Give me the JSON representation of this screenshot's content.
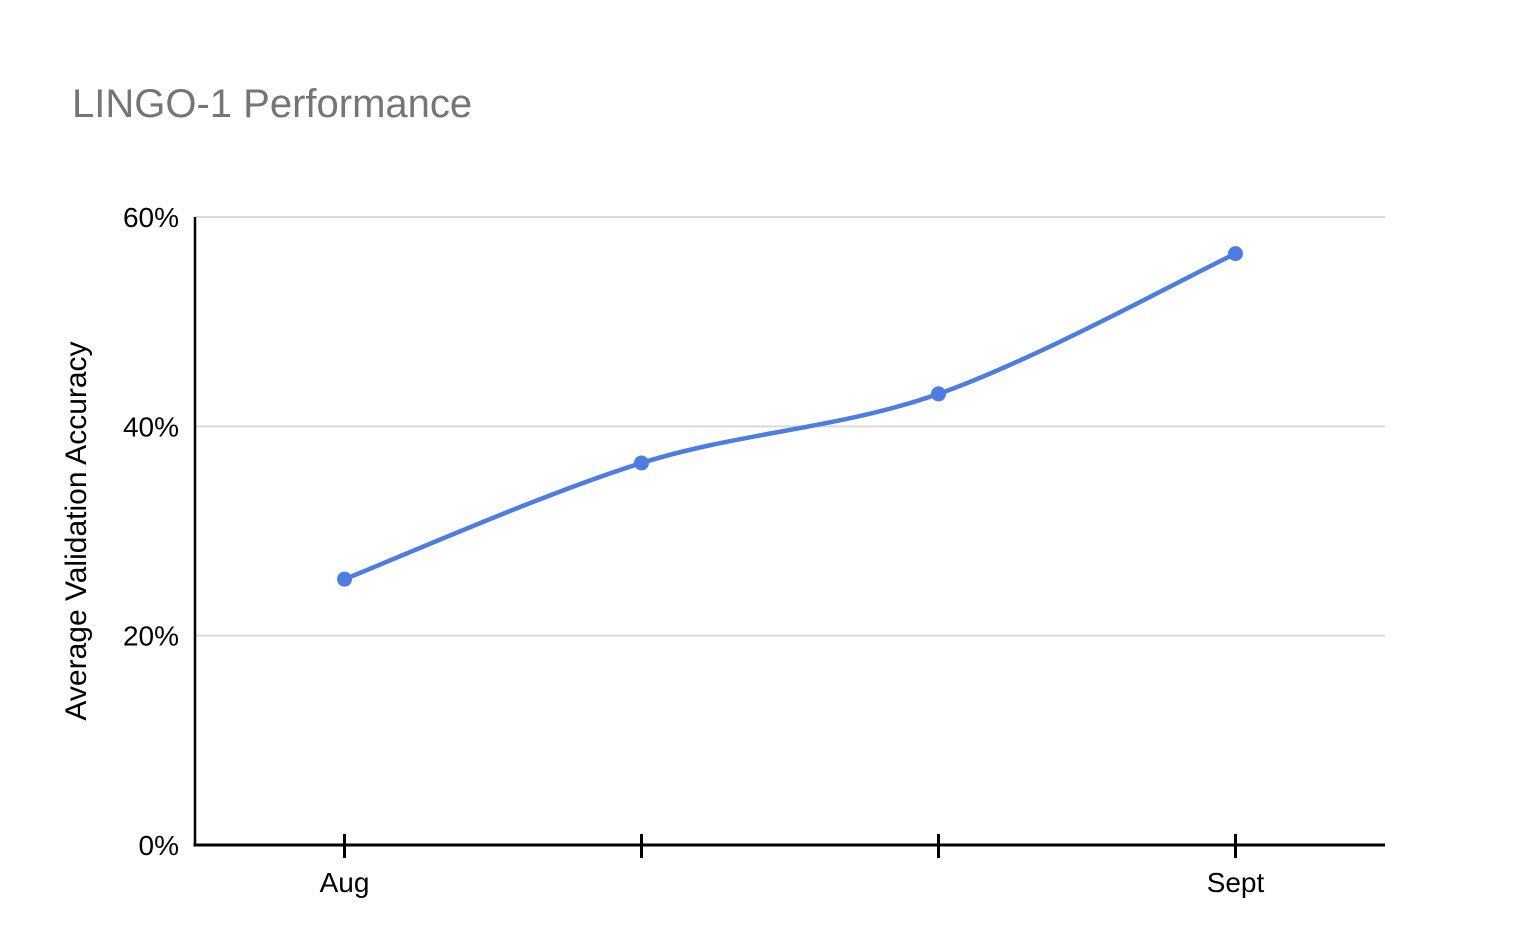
{
  "title": "LINGO-1 Performance",
  "chart_data": {
    "type": "line",
    "title": "LINGO-1 Performance",
    "categories": [
      "Aug",
      "",
      "",
      "Sept"
    ],
    "values": [
      25.4,
      36.5,
      43.1,
      56.5
    ],
    "series": [
      {
        "name": "Average Validation Accuracy",
        "values": [
          25.4,
          36.5,
          43.1,
          56.5
        ]
      }
    ],
    "xlabel": "",
    "ylabel": "Average Validation Accuracy",
    "ylim": [
      0,
      60
    ],
    "yticks": [
      {
        "value": 0,
        "label": "0%"
      },
      {
        "value": 20,
        "label": "20%"
      },
      {
        "value": 40,
        "label": "40%"
      },
      {
        "value": 60,
        "label": "60%"
      }
    ],
    "grid": true,
    "legend_position": "none",
    "smooth": true,
    "line_color": "#4d7ce2",
    "grid_color": "#d9d9d9",
    "axis_color": "#000000",
    "label_color": "#000000",
    "title_color": "#757575"
  }
}
